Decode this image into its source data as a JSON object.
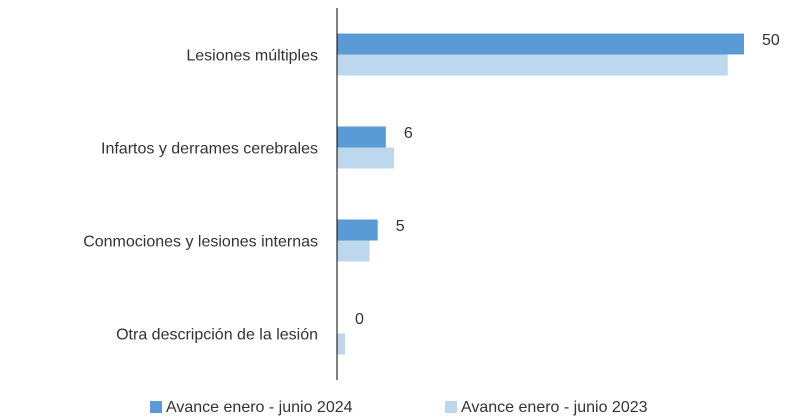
{
  "chart_data": {
    "type": "hbar",
    "categories": [
      "Lesiones múltiples",
      "Infartos y derrames cerebrales",
      "Conmociones y lesiones internas",
      "Otra descripción de la lesión"
    ],
    "series": [
      {
        "name": "Avance enero - junio 2024",
        "color": "#5b9bd5",
        "values": [
          50,
          6,
          5,
          0
        ]
      },
      {
        "name": "Avance enero - junio 2023",
        "color": "#bdd7ee",
        "values": [
          48,
          7,
          4,
          1
        ]
      }
    ]
  }
}
